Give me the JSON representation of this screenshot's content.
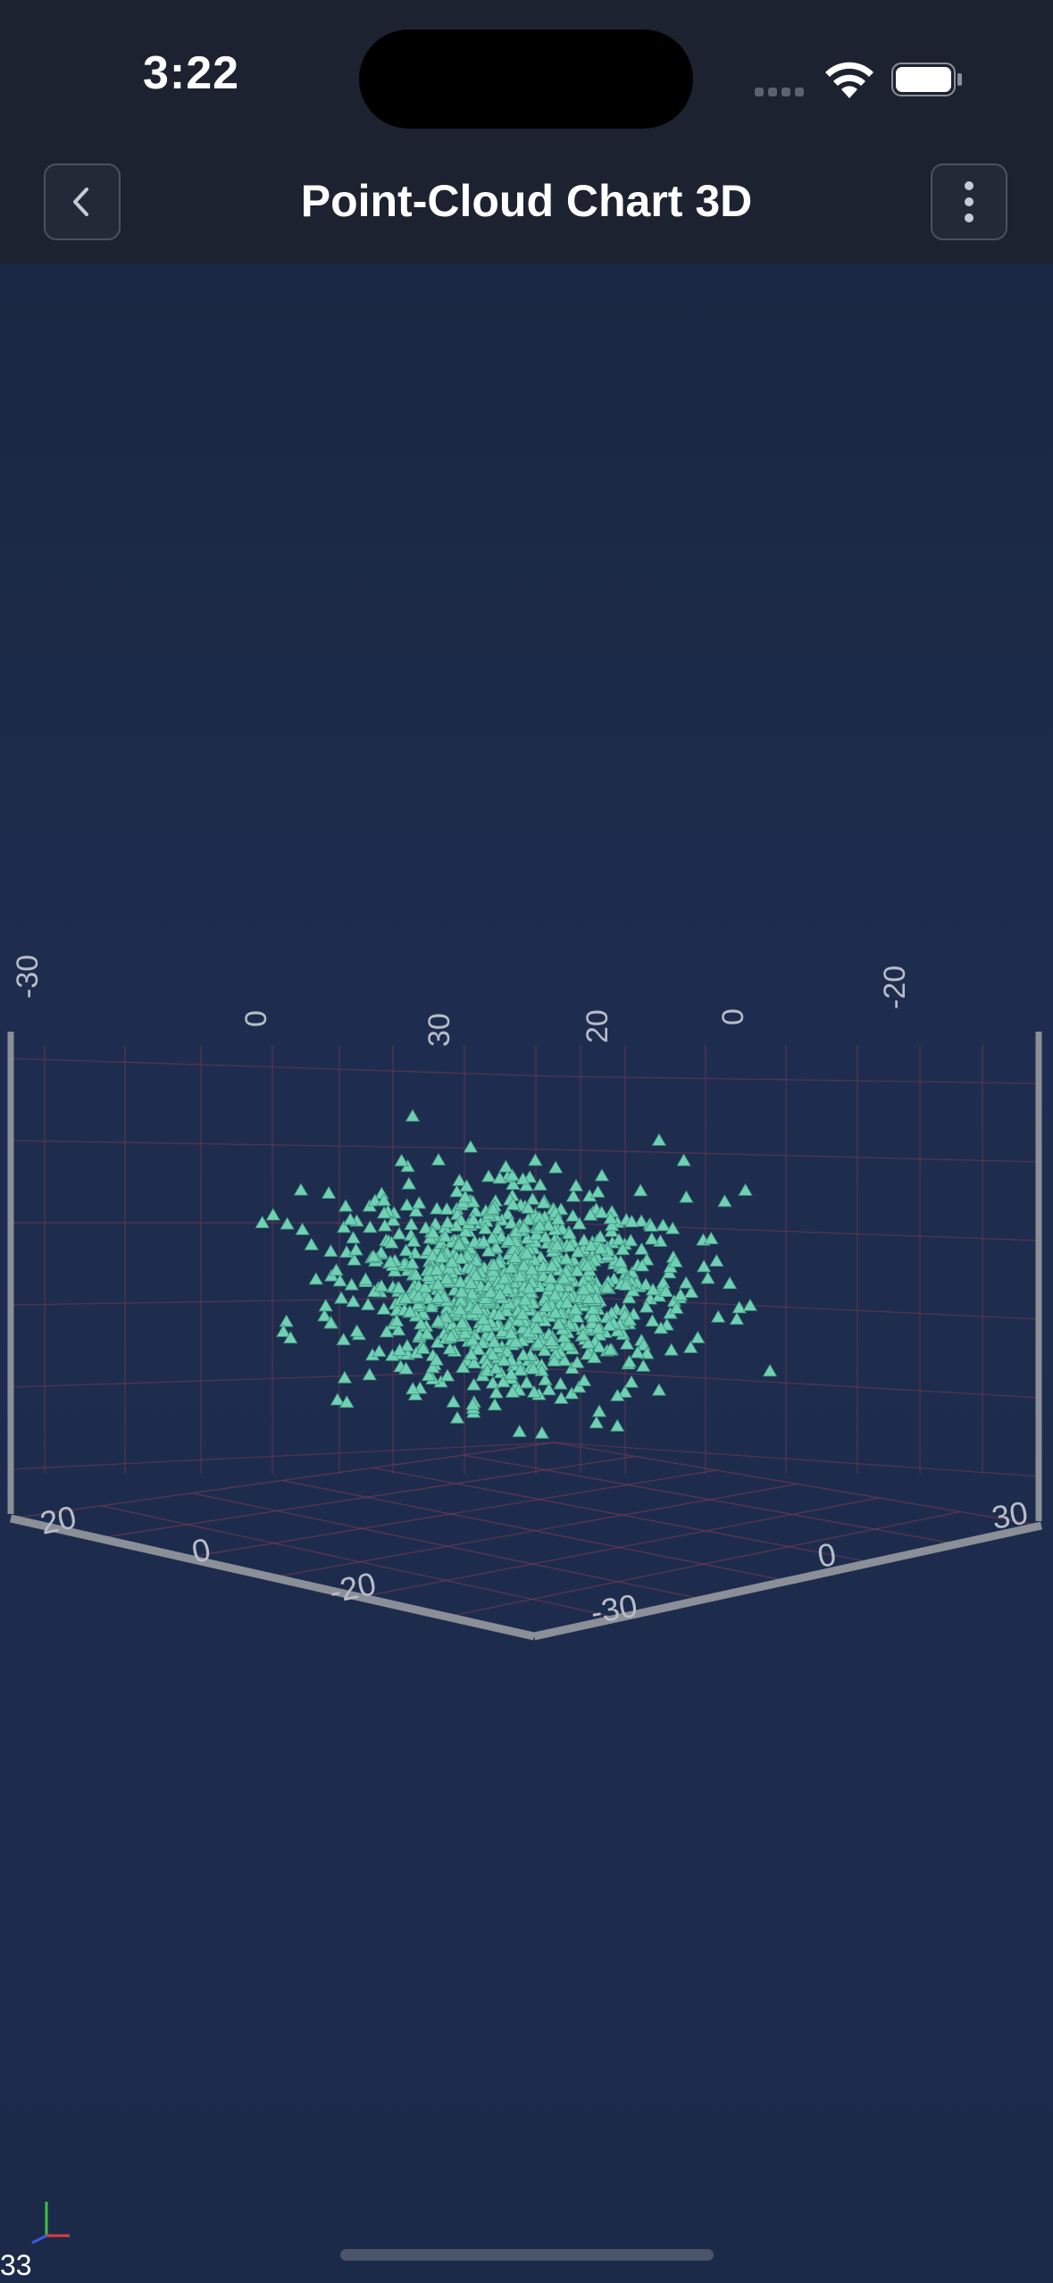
{
  "status_bar": {
    "time": "3:22"
  },
  "nav": {
    "title": "Point-Cloud Chart 3D"
  },
  "chart_data": {
    "type": "scatter",
    "dimensions": 3,
    "marker": "triangle",
    "marker_color": "#6fd0b4",
    "grid_color": "#7a3a52",
    "axis_color": "#8a8f98",
    "point_count_estimate": 1000,
    "distribution": "normal",
    "center": [
      0,
      0,
      0
    ],
    "x_ticks": [
      "-30",
      "0",
      "30"
    ],
    "y_ticks": [
      "20",
      "0",
      "-20"
    ],
    "z_ticks": [
      "20",
      "0",
      "-20"
    ],
    "x_range": [
      -40,
      40
    ],
    "y_range": [
      -30,
      30
    ],
    "z_range": [
      -30,
      30
    ],
    "top_labels": [
      "-30",
      "0",
      "30",
      "20",
      "0",
      "-20"
    ],
    "bottom_left_labels": [
      "20",
      "0",
      "-20"
    ],
    "bottom_right_labels": [
      "-30",
      "0",
      "30"
    ]
  },
  "footer": {
    "fps": "33"
  }
}
